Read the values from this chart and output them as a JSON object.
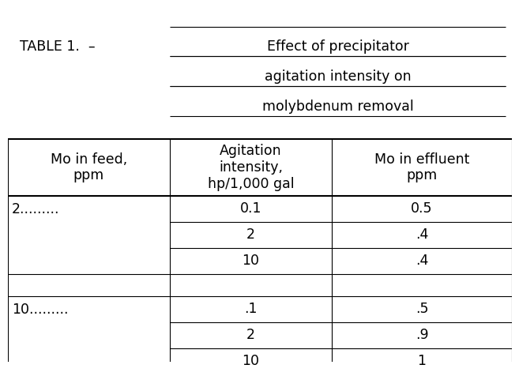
{
  "title_prefix": "TABLE 1. – ",
  "title_lines": [
    "Effect of precipitator",
    "agitation intensity on",
    "molybdenum removal"
  ],
  "col_headers": [
    "Mo in feed,\nppm",
    "Agitation\nintensity,\nhp/1,000 gal",
    "Mo in effluent\nppm"
  ],
  "group1_label": "2.........",
  "group2_label": "10.........",
  "col1_group1": [
    "0.1",
    "2",
    "10"
  ],
  "col2_group1": [
    "0.5",
    ".4",
    ".4"
  ],
  "col1_group2": [
    ".1",
    "2",
    "10"
  ],
  "col2_group2": [
    ".5",
    ".9",
    "1"
  ],
  "bg_color": "#ffffff",
  "text_color": "#000000",
  "font_family": "Courier New",
  "font_size": 12.5,
  "title_font_size": 12.5,
  "lw_thick": 1.5,
  "lw_thin": 0.8
}
